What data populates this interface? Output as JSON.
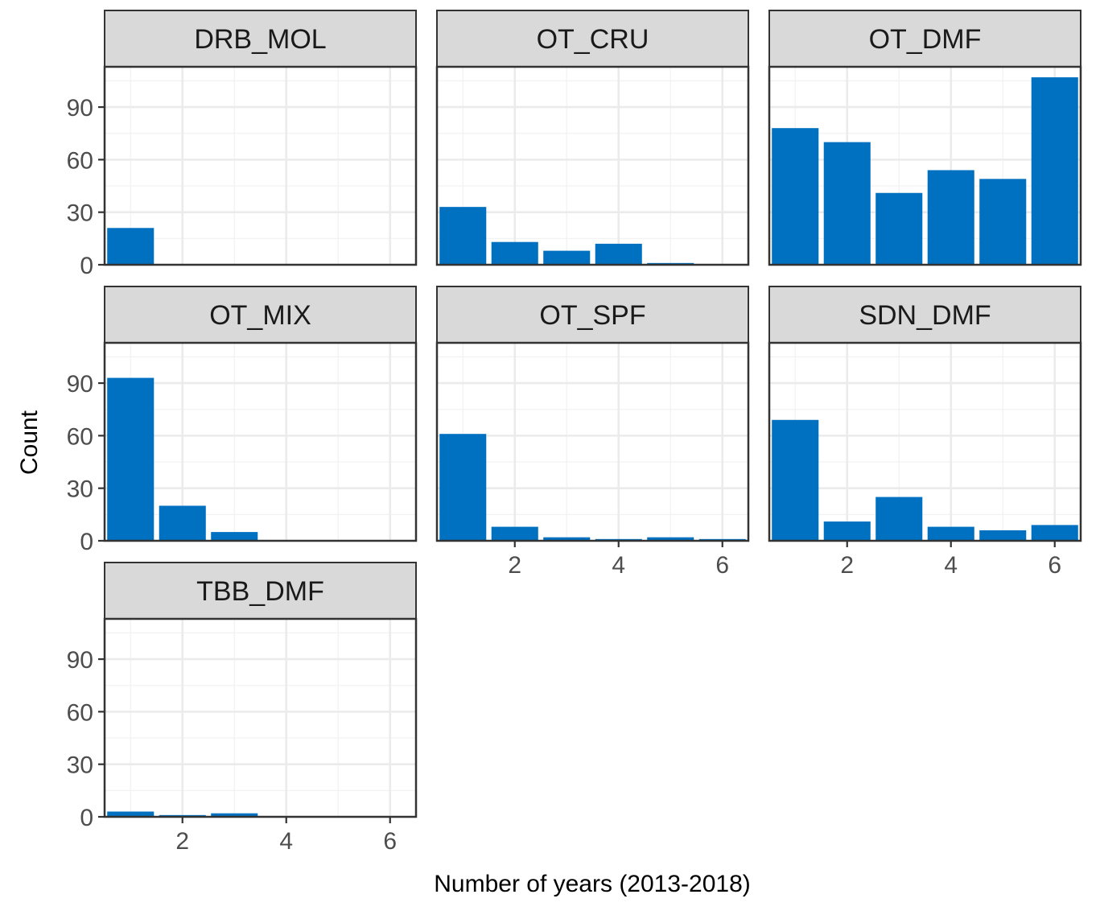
{
  "chart_data": {
    "type": "bar",
    "layout": "facet_wrap",
    "ncol": 3,
    "xlabel": "Number of years (2013-2018)",
    "ylabel": "Count",
    "xlim": [
      0.5,
      6.5
    ],
    "ylim": [
      0,
      113
    ],
    "x_ticks": [
      2,
      4,
      6
    ],
    "y_ticks": [
      0,
      30,
      60,
      90
    ],
    "bar_color": "#0070C0",
    "strip_color": "#D9D9D9",
    "grid": true,
    "x": [
      1,
      2,
      3,
      4,
      5,
      6
    ],
    "panels": [
      {
        "name": "DRB_MOL",
        "values": [
          21,
          0,
          0,
          0,
          0,
          0
        ]
      },
      {
        "name": "OT_CRU",
        "values": [
          33,
          13,
          8,
          12,
          1,
          0
        ]
      },
      {
        "name": "OT_DMF",
        "values": [
          78,
          70,
          41,
          54,
          49,
          107
        ]
      },
      {
        "name": "OT_MIX",
        "values": [
          93,
          20,
          5,
          0,
          0,
          0
        ]
      },
      {
        "name": "OT_SPF",
        "values": [
          61,
          8,
          2,
          1,
          2,
          1
        ]
      },
      {
        "name": "SDN_DMF",
        "values": [
          69,
          11,
          25,
          8,
          6,
          9
        ]
      },
      {
        "name": "TBB_DMF",
        "values": [
          3,
          1,
          2,
          0,
          0,
          0
        ]
      }
    ]
  }
}
